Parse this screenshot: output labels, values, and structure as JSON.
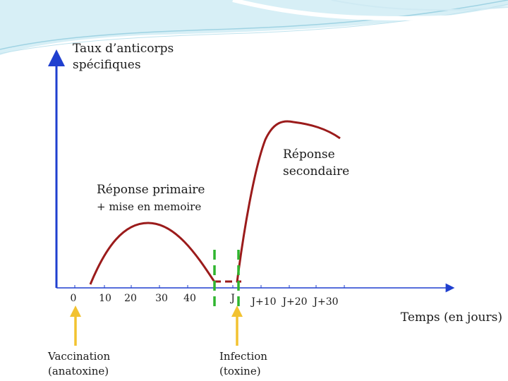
{
  "labels": {
    "y_axis_title_line1": "Taux d’anticorps",
    "y_axis_title_line2": "spécifiques",
    "x_axis_title": "Temps (en jours)",
    "primary_response": "Réponse primaire",
    "memory_note": "+ mise en memoire",
    "secondary_response_line1": "Réponse",
    "secondary_response_line2": "secondaire",
    "vaccination_line1": "Vaccination",
    "vaccination_line2": "(anatoxine)",
    "infection_line1": "Infection",
    "infection_line2": "(toxine)"
  },
  "ticks": [
    "0",
    "10",
    "20",
    "30",
    "40",
    "J",
    "J+10",
    "J+20",
    "J+30"
  ],
  "colors": {
    "axis": "#1f3fcf",
    "curve": "#9b1b1b",
    "marker": "#2fb52f",
    "arrow": "#f2c230",
    "header_wave": "#bfe6f0"
  }
}
